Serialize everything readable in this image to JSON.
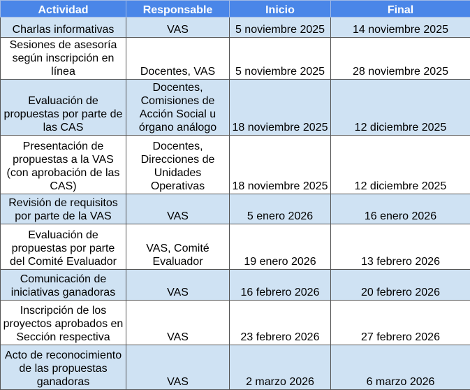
{
  "table": {
    "header": [
      "Actividad",
      "Responsable",
      "Inicio",
      "Final"
    ],
    "rows": [
      [
        "Charlas informativas",
        "VAS",
        "5 noviembre 2025",
        "14 noviembre 2025"
      ],
      [
        "Sesiones de asesoría según inscripción en línea",
        "Docentes, VAS",
        "5 noviembre 2025",
        "28 noviembre 2025"
      ],
      [
        "Evaluación de propuestas por parte de las CAS",
        "Docentes, Comisiones de Acción Social u órgano análogo",
        "18 noviembre 2025",
        "12 diciembre 2025"
      ],
      [
        "Presentación de propuestas a la VAS (con aprobación de las CAS)",
        "Docentes, Direcciones de Unidades Operativas",
        "18 noviembre 2025",
        "12 diciembre 2025"
      ],
      [
        "Revisión de requisitos por parte de la VAS",
        "VAS",
        "5 enero 2026",
        "16 enero 2026"
      ],
      [
        "Evaluación de propuestas por parte del Comité Evaluador",
        "VAS, Comité Evaluador",
        "19 enero 2026",
        "13 febrero 2026"
      ],
      [
        "Comunicación de iniciativas ganadoras",
        "VAS",
        "16 febrero 2026",
        "20 febrero 2026"
      ],
      [
        "Inscripción de los proyectos aprobados en Sección respectiva",
        "VAS",
        "23 febrero 2026",
        "27 febrero 2026"
      ],
      [
        "Acto de reconocimiento de las propuestas ganadoras",
        "VAS",
        "2 marzo 2026",
        "6 marzo 2026"
      ]
    ]
  }
}
